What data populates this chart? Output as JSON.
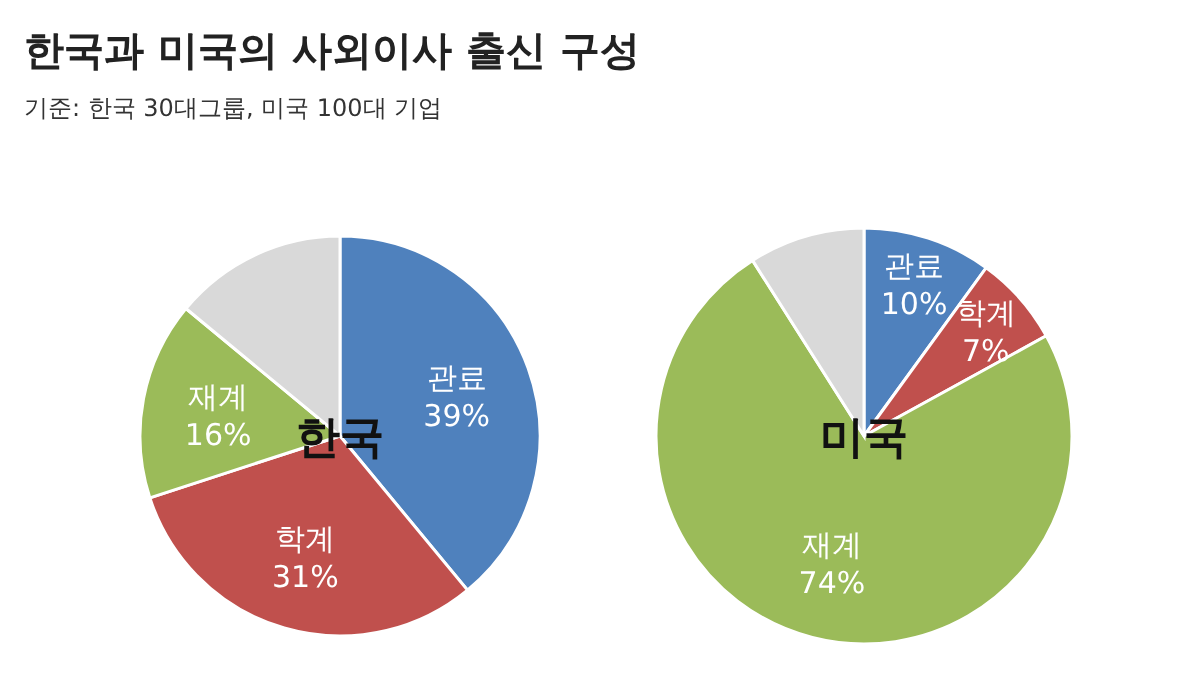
{
  "chart_data": [
    {
      "type": "other",
      "title": "한국과 미국의 사외이사 출신 구성",
      "subtitle": "기준: 한국 30대그룹, 미국 100대 기업"
    },
    {
      "type": "pie",
      "title": "한국",
      "categories": [
        "관료",
        "학계",
        "재계",
        null
      ],
      "values": [
        39,
        31,
        16,
        14
      ],
      "value_labels": [
        "39%",
        "31%",
        "16%",
        null
      ],
      "colors": [
        "#4f81bd",
        "#c0504d",
        "#9bbb59",
        "#d9d9d9"
      ]
    },
    {
      "type": "pie",
      "title": "미국",
      "categories": [
        "관료",
        "학계",
        "재계",
        null
      ],
      "values": [
        10,
        7,
        74,
        9
      ],
      "value_labels": [
        "10%",
        "7%",
        "74%",
        null
      ],
      "colors": [
        "#4f81bd",
        "#c0504d",
        "#9bbb59",
        "#d9d9d9"
      ]
    }
  ]
}
